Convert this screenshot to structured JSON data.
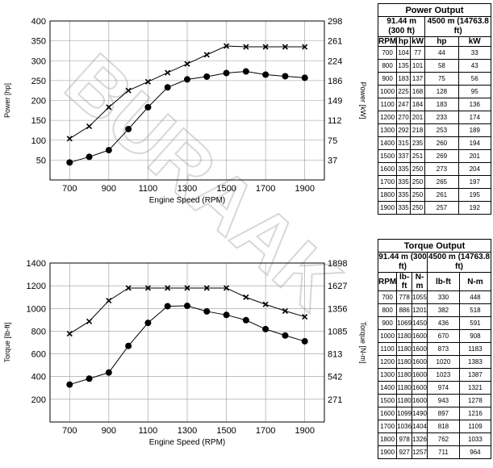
{
  "watermark": "BURAAK",
  "chart_data": [
    {
      "type": "line",
      "xlabel": "Engine Speed (RPM)",
      "ylabel": "Power [hp]",
      "y2label": "Power [kW]",
      "xlim": [
        600,
        2000
      ],
      "ylim": [
        0,
        400
      ],
      "xticks": [
        700,
        900,
        1100,
        1300,
        1500,
        1700,
        1900
      ],
      "xtick_labels": [
        "700",
        "900",
        "1100",
        "1300",
        "1500",
        "1700",
        "1900"
      ],
      "yticks": [
        50,
        100,
        150,
        200,
        250,
        300,
        350,
        400
      ],
      "ytick_labels": [
        "50",
        "100",
        "150",
        "200",
        "250",
        "300",
        "350",
        "400"
      ],
      "y2ticks": [
        50,
        100,
        150,
        200,
        250,
        300,
        350,
        400
      ],
      "y2tick_labels": [
        "37",
        "75",
        "112",
        "149",
        "186",
        "224",
        "261",
        "298"
      ],
      "grid": true,
      "x": [
        700,
        800,
        900,
        1000,
        1100,
        1200,
        1300,
        1400,
        1500,
        1600,
        1700,
        1800,
        1900
      ],
      "series": [
        {
          "marker": "x",
          "values": [
            104,
            135,
            183,
            225,
            247,
            270,
            292,
            315,
            337,
            335,
            335,
            335,
            335
          ]
        },
        {
          "marker": "circle",
          "values": [
            44,
            58,
            75,
            128,
            183,
            233,
            253,
            260,
            269,
            273,
            265,
            261,
            257
          ]
        }
      ]
    },
    {
      "type": "line",
      "xlabel": "Engine Speed (RPM)",
      "ylabel": "Torque [lb-ft]",
      "y2label": "Torque [N-m]",
      "xlim": [
        600,
        2000
      ],
      "ylim": [
        0,
        1400
      ],
      "xticks": [
        700,
        900,
        1100,
        1300,
        1500,
        1700,
        1900
      ],
      "xtick_labels": [
        "700",
        "900",
        "1100",
        "1300",
        "1500",
        "1700",
        "1900"
      ],
      "yticks": [
        200,
        400,
        600,
        800,
        1000,
        1200,
        1400
      ],
      "ytick_labels": [
        "200",
        "400",
        "600",
        "800",
        "1000",
        "1200",
        "1400"
      ],
      "y2ticks": [
        200,
        400,
        600,
        800,
        1000,
        1200,
        1400
      ],
      "y2tick_labels": [
        "271",
        "542",
        "813",
        "1085",
        "1356",
        "1627",
        "1898"
      ],
      "grid": true,
      "x": [
        700,
        800,
        900,
        1000,
        1100,
        1200,
        1300,
        1400,
        1500,
        1600,
        1700,
        1800,
        1900
      ],
      "series": [
        {
          "marker": "x",
          "values": [
            778,
            886,
            1069,
            1180,
            1180,
            1180,
            1180,
            1180,
            1180,
            1099,
            1036,
            978,
            927
          ]
        },
        {
          "marker": "circle",
          "values": [
            330,
            382,
            436,
            670,
            873,
            1020,
            1023,
            974,
            943,
            897,
            818,
            762,
            711
          ]
        }
      ]
    },
    {
      "type": "table",
      "title": "Power Output",
      "group_headers": [
        "91.44 m (300 ft)",
        "4500 m (14763.8 ft)"
      ],
      "columns": [
        "RPM",
        "hp",
        "kW",
        "hp",
        "kW"
      ],
      "rows": [
        [
          "700",
          "104",
          "77",
          "44",
          "33"
        ],
        [
          "800",
          "135",
          "101",
          "58",
          "43"
        ],
        [
          "900",
          "183",
          "137",
          "75",
          "56"
        ],
        [
          "1000",
          "225",
          "168",
          "128",
          "95"
        ],
        [
          "1100",
          "247",
          "184",
          "183",
          "136"
        ],
        [
          "1200",
          "270",
          "201",
          "233",
          "174"
        ],
        [
          "1300",
          "292",
          "218",
          "253",
          "189"
        ],
        [
          "1400",
          "315",
          "235",
          "260",
          "194"
        ],
        [
          "1500",
          "337",
          "251",
          "269",
          "201"
        ],
        [
          "1600",
          "335",
          "250",
          "273",
          "204"
        ],
        [
          "1700",
          "335",
          "250",
          "265",
          "197"
        ],
        [
          "1800",
          "335",
          "250",
          "261",
          "195"
        ],
        [
          "1900",
          "335",
          "250",
          "257",
          "192"
        ]
      ]
    },
    {
      "type": "table",
      "title": "Torque Output",
      "group_headers": [
        "91.44 m (300 ft)",
        "4500 m (14763.8 ft)"
      ],
      "columns": [
        "RPM",
        "lb-ft",
        "N-m",
        "lb-ft",
        "N-m"
      ],
      "rows": [
        [
          "700",
          "778",
          "1055",
          "330",
          "448"
        ],
        [
          "800",
          "886",
          "1201",
          "382",
          "518"
        ],
        [
          "900",
          "1069",
          "1450",
          "436",
          "591"
        ],
        [
          "1000",
          "1180",
          "1600",
          "670",
          "908"
        ],
        [
          "1100",
          "1180",
          "1600",
          "873",
          "1183"
        ],
        [
          "1200",
          "1180",
          "1600",
          "1020",
          "1383"
        ],
        [
          "1300",
          "1180",
          "1600",
          "1023",
          "1387"
        ],
        [
          "1400",
          "1180",
          "1600",
          "974",
          "1321"
        ],
        [
          "1500",
          "1180",
          "1600",
          "943",
          "1278"
        ],
        [
          "1600",
          "1099",
          "1490",
          "897",
          "1216"
        ],
        [
          "1700",
          "1036",
          "1404",
          "818",
          "1109"
        ],
        [
          "1800",
          "978",
          "1326",
          "762",
          "1033"
        ],
        [
          "1900",
          "927",
          "1257",
          "711",
          "964"
        ]
      ]
    }
  ]
}
